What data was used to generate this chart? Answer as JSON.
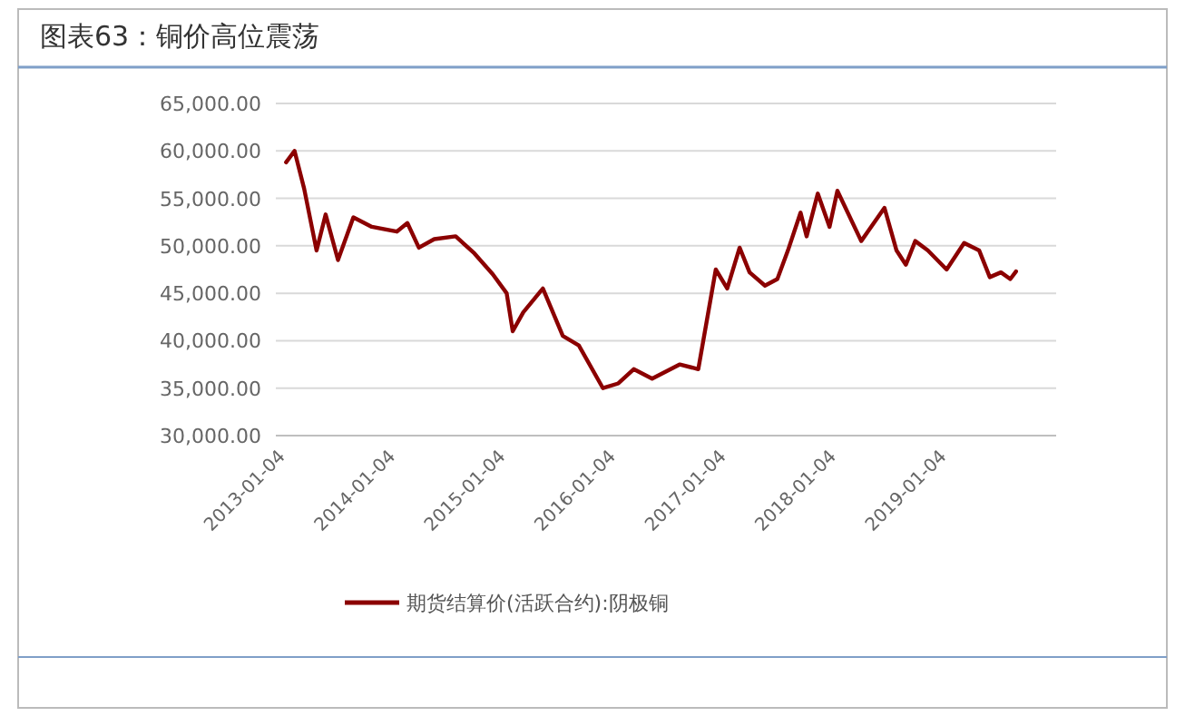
{
  "chart_data": {
    "type": "line",
    "title": "图表63：铜价高位震荡",
    "legend": "bottom",
    "grid": "y",
    "marker": "none",
    "line_style": "solid",
    "xlim": [
      "2012-12-01",
      "2019-12-31"
    ],
    "xticks": [
      "2013-01-04",
      "2014-01-04",
      "2015-01-04",
      "2016-01-04",
      "2017-01-04",
      "2018-01-04",
      "2019-01-04"
    ],
    "ylim": [
      30000,
      65000
    ],
    "yticks": [
      {
        "value": 30000,
        "label": "30,000.00"
      },
      {
        "value": 35000,
        "label": "35,000.00"
      },
      {
        "value": 40000,
        "label": "40,000.00"
      },
      {
        "value": 45000,
        "label": "45,000.00"
      },
      {
        "value": 50000,
        "label": "50,000.00"
      },
      {
        "value": 55000,
        "label": "55,000.00"
      },
      {
        "value": 60000,
        "label": "60,000.00"
      },
      {
        "value": 65000,
        "label": "65,000.00"
      }
    ],
    "series": [
      {
        "name": "期货结算价(活跃合约):阴极铜",
        "color": "#8b0000",
        "x": [
          "2013-01-04",
          "2013-02-01",
          "2013-03-05",
          "2013-04-15",
          "2013-05-15",
          "2013-06-25",
          "2013-08-15",
          "2013-10-15",
          "2014-01-06",
          "2014-02-10",
          "2014-03-20",
          "2014-05-10",
          "2014-07-20",
          "2014-09-20",
          "2014-11-20",
          "2015-01-05",
          "2015-01-25",
          "2015-03-01",
          "2015-05-05",
          "2015-07-10",
          "2015-09-01",
          "2015-11-20",
          "2016-01-10",
          "2016-03-01",
          "2016-05-01",
          "2016-08-01",
          "2016-10-01",
          "2016-11-28",
          "2017-01-05",
          "2017-02-15",
          "2017-03-20",
          "2017-05-10",
          "2017-06-20",
          "2017-07-25",
          "2017-09-05",
          "2017-09-25",
          "2017-11-01",
          "2017-12-10",
          "2018-01-05",
          "2018-03-25",
          "2018-06-10",
          "2018-07-20",
          "2018-08-20",
          "2018-09-20",
          "2018-11-01",
          "2019-01-02",
          "2019-03-01",
          "2019-04-20",
          "2019-05-25",
          "2019-07-01",
          "2019-08-01",
          "2019-08-20"
        ],
        "values": [
          58800,
          60000,
          56000,
          49500,
          53300,
          48500,
          53000,
          52000,
          51500,
          52400,
          49800,
          50700,
          51000,
          49200,
          47000,
          45000,
          41000,
          43000,
          45500,
          40500,
          39500,
          35000,
          35500,
          37000,
          36000,
          37500,
          37000,
          47500,
          45500,
          49800,
          47200,
          45800,
          46500,
          49500,
          53500,
          51000,
          55500,
          52000,
          55800,
          50500,
          54000,
          49500,
          48000,
          50500,
          49500,
          47500,
          50300,
          49500,
          46700,
          47200,
          46500,
          47300
        ]
      }
    ]
  }
}
